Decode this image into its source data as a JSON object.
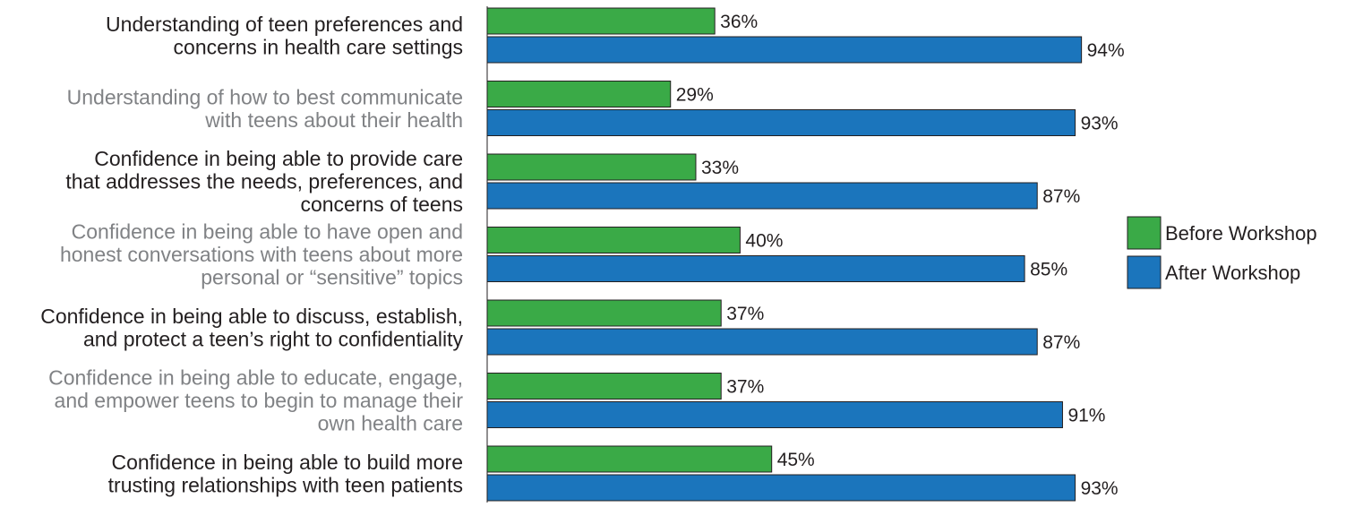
{
  "chart_data": {
    "type": "bar",
    "orientation": "horizontal",
    "title": "",
    "xlabel": "",
    "ylabel": "",
    "xlim": [
      0,
      100
    ],
    "grid": false,
    "legend_position": "right",
    "categories": [
      [
        "Understanding of teen preferences and",
        "concerns in health care settings"
      ],
      [
        "Understanding of how to best communicate",
        "with teens about their health"
      ],
      [
        "Confidence in being able to provide care",
        "that addresses the needs, preferences, and",
        "concerns of teens"
      ],
      [
        "Confidence in being able to have open and",
        "honest conversations with teens about more",
        "personal or “sensitive” topics"
      ],
      [
        "Confidence in being able to discuss, establish,",
        "and protect a teen’s right to confidentiality"
      ],
      [
        "Confidence in being able to educate, engage,",
        "and empower teens to begin to manage their",
        "own health care"
      ],
      [
        "Confidence in being able to build more",
        "trusting relationships with teen patients"
      ]
    ],
    "category_colors": [
      "#231f20",
      "#808285",
      "#231f20",
      "#808285",
      "#231f20",
      "#808285",
      "#231f20"
    ],
    "series": [
      {
        "name": "Before Workshop",
        "color": "#3aaa47",
        "values": [
          36,
          29,
          33,
          40,
          37,
          37,
          45
        ],
        "labels": [
          "36%",
          "29%",
          "33%",
          "40%",
          "37%",
          "37%",
          "45%"
        ]
      },
      {
        "name": "After Workshop",
        "color": "#1b75bc",
        "values": [
          94,
          93,
          87,
          85,
          87,
          91,
          93
        ],
        "labels": [
          "94%",
          "93%",
          "87%",
          "85%",
          "87%",
          "91%",
          "93%"
        ]
      }
    ]
  }
}
